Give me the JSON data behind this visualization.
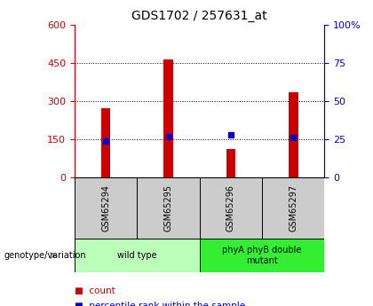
{
  "title": "GDS1702 / 257631_at",
  "samples": [
    "GSM65294",
    "GSM65295",
    "GSM65296",
    "GSM65297"
  ],
  "counts": [
    270,
    462,
    110,
    333
  ],
  "percentiles": [
    24,
    27,
    28,
    26
  ],
  "ylim_left": [
    0,
    600
  ],
  "ylim_right": [
    0,
    100
  ],
  "yticks_left": [
    0,
    150,
    300,
    450,
    600
  ],
  "yticks_right": [
    0,
    25,
    50,
    75,
    100
  ],
  "bar_color": "#cc0000",
  "percentile_color": "#0000cc",
  "bar_width": 0.15,
  "groups": [
    {
      "label": "wild type",
      "samples": [
        0,
        1
      ],
      "color": "#bbffbb"
    },
    {
      "label": "phyA phyB double\nmutant",
      "samples": [
        2,
        3
      ],
      "color": "#33ee33"
    }
  ],
  "grid_color": "black",
  "background_color": "#ffffff",
  "sample_box_color": "#cccccc",
  "genotype_label": "genotype/variation",
  "legend_items": [
    {
      "label": "count",
      "color": "#cc0000"
    },
    {
      "label": "percentile rank within the sample",
      "color": "#0000cc"
    }
  ]
}
